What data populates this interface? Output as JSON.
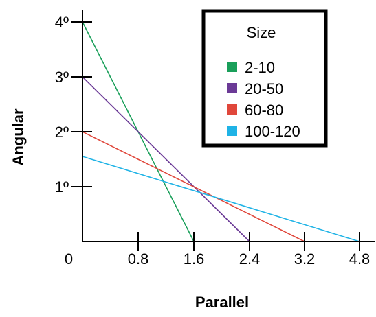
{
  "chart_data": {
    "type": "line",
    "title": "",
    "xlabel": "Parallel",
    "ylabel": "Angular",
    "origin_label": "0",
    "x_ticks": [
      0.8,
      1.6,
      2.4,
      3.2,
      4.8
    ],
    "x_tick_labels": [
      "0.8",
      "1.6",
      "2.4",
      "3.2",
      "4.8"
    ],
    "y_ticks": [
      1,
      2,
      3,
      4
    ],
    "y_tick_labels": [
      "1º",
      "2º",
      "3º",
      "4º"
    ],
    "legend": {
      "title": "Size",
      "placement": "top-right"
    },
    "series": [
      {
        "name": "2-10",
        "color": "#1a9f5a",
        "points": [
          [
            0,
            4
          ],
          [
            1.6,
            0
          ]
        ]
      },
      {
        "name": "20-50",
        "color": "#6b3a96",
        "points": [
          [
            0,
            3
          ],
          [
            2.4,
            0
          ]
        ]
      },
      {
        "name": "60-80",
        "color": "#e0473b",
        "points": [
          [
            0,
            2
          ],
          [
            3.2,
            0
          ]
        ]
      },
      {
        "name": "100-120",
        "color": "#1fb3e6",
        "points": [
          [
            0,
            1.55
          ],
          [
            4.8,
            0
          ]
        ]
      }
    ]
  }
}
